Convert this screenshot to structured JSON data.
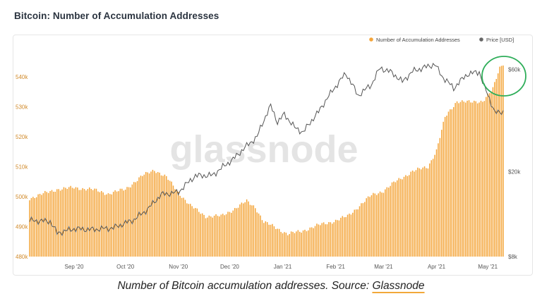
{
  "header": {
    "title": "Bitcoin: Number of Accumulation Addresses"
  },
  "caption": {
    "text": "Number of Bitcoin accumulation addresses. Source: ",
    "source": "Glassnode"
  },
  "watermark": "glassnode",
  "colors": {
    "bars": "#f4a53a",
    "price_line": "#555555",
    "highlight_circle": "#2fae5a",
    "axis_text_left": "#d18a2a",
    "axis_text": "#555555"
  },
  "chart_data": {
    "type": "bar",
    "legend_position": "top-right",
    "grid": false,
    "legend": [
      {
        "name": "Number of Accumulation Addresses",
        "color": "#f4a53a",
        "marker": "dot"
      },
      {
        "name": "Price [USD]",
        "color": "#666666",
        "marker": "dot"
      }
    ],
    "x_ticks": [
      "Sep '20",
      "Oct '20",
      "Nov '20",
      "Dec '20",
      "Jan '21",
      "Feb '21",
      "Mar '21",
      "Apr '21",
      "May '21"
    ],
    "y_left": {
      "ticks": [
        "480k",
        "490k",
        "500k",
        "510k",
        "520k",
        "530k",
        "540k"
      ],
      "range": [
        480000,
        545000
      ]
    },
    "y_right": {
      "ticks": [
        "$8k",
        "$20k",
        "$60k"
      ],
      "scale": "log",
      "range": [
        8000,
        65000
      ]
    },
    "series": [
      {
        "name": "Number of Accumulation Addresses",
        "type": "bar",
        "axis": "left",
        "anchors": [
          [
            "2020-08-20",
            499500
          ],
          [
            "2020-08-27",
            500800
          ],
          [
            "2020-09-05",
            502500
          ],
          [
            "2020-09-15",
            503000
          ],
          [
            "2020-09-25",
            502500
          ],
          [
            "2020-10-05",
            501000
          ],
          [
            "2020-10-15",
            502500
          ],
          [
            "2020-10-25",
            507000
          ],
          [
            "2020-11-01",
            509000
          ],
          [
            "2020-11-08",
            506500
          ],
          [
            "2020-11-15",
            501500
          ],
          [
            "2020-11-22",
            497000
          ],
          [
            "2020-12-01",
            493500
          ],
          [
            "2020-12-10",
            493500
          ],
          [
            "2020-12-18",
            496000
          ],
          [
            "2020-12-25",
            498500
          ],
          [
            "2020-12-30",
            496500
          ],
          [
            "2021-01-04",
            491500
          ],
          [
            "2021-01-10",
            490000
          ],
          [
            "2021-01-18",
            487500
          ],
          [
            "2021-01-26",
            488500
          ],
          [
            "2021-02-05",
            490500
          ],
          [
            "2021-02-15",
            492000
          ],
          [
            "2021-02-22",
            493500
          ],
          [
            "2021-03-01",
            497000
          ],
          [
            "2021-03-08",
            500500
          ],
          [
            "2021-03-15",
            502000
          ],
          [
            "2021-03-22",
            505000
          ],
          [
            "2021-04-01",
            508500
          ],
          [
            "2021-04-10",
            510000
          ],
          [
            "2021-04-15",
            515500
          ],
          [
            "2021-04-20",
            526500
          ],
          [
            "2021-04-27",
            532000
          ],
          [
            "2021-05-05",
            531500
          ],
          [
            "2021-05-12",
            532000
          ],
          [
            "2021-05-18",
            536000
          ],
          [
            "2021-05-22",
            543000
          ],
          [
            "2021-05-24",
            544500
          ]
        ]
      },
      {
        "name": "Price [USD]",
        "type": "line",
        "axis": "right",
        "anchors": [
          [
            "2020-08-20",
            11800
          ],
          [
            "2020-09-01",
            11700
          ],
          [
            "2020-09-05",
            10300
          ],
          [
            "2020-09-15",
            10800
          ],
          [
            "2020-09-25",
            10700
          ],
          [
            "2020-10-08",
            10900
          ],
          [
            "2020-10-20",
            11900
          ],
          [
            "2020-10-28",
            13300
          ],
          [
            "2020-11-05",
            15600
          ],
          [
            "2020-11-15",
            16000
          ],
          [
            "2020-11-25",
            19100
          ],
          [
            "2020-12-05",
            19200
          ],
          [
            "2020-12-17",
            22800
          ],
          [
            "2020-12-31",
            29000
          ],
          [
            "2021-01-08",
            40500
          ],
          [
            "2021-01-12",
            34000
          ],
          [
            "2021-01-16",
            37000
          ],
          [
            "2021-01-22",
            32100
          ],
          [
            "2021-01-27",
            30500
          ],
          [
            "2021-02-05",
            38000
          ],
          [
            "2021-02-13",
            47500
          ],
          [
            "2021-02-21",
            57500
          ],
          [
            "2021-02-28",
            45200
          ],
          [
            "2021-03-08",
            51000
          ],
          [
            "2021-03-13",
            61000
          ],
          [
            "2021-03-20",
            58000
          ],
          [
            "2021-03-26",
            52500
          ],
          [
            "2021-04-01",
            58800
          ],
          [
            "2021-04-14",
            63500
          ],
          [
            "2021-04-18",
            56000
          ],
          [
            "2021-04-25",
            49000
          ],
          [
            "2021-05-03",
            57000
          ],
          [
            "2021-05-10",
            58500
          ],
          [
            "2021-05-13",
            49500
          ],
          [
            "2021-05-19",
            38000
          ],
          [
            "2021-05-21",
            37500
          ],
          [
            "2021-05-24",
            38200
          ]
        ]
      }
    ]
  }
}
